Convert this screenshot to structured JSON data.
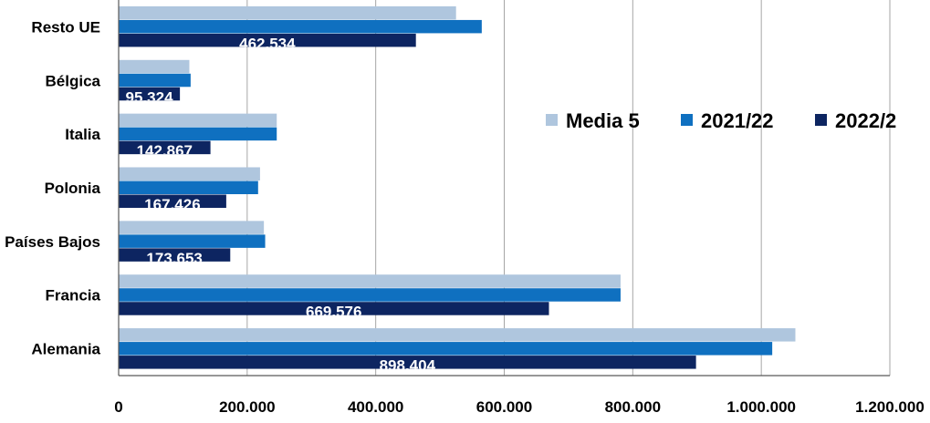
{
  "chart_data": {
    "type": "bar",
    "orientation": "horizontal",
    "categories": [
      "Alemania",
      "Francia",
      "Países Bajos",
      "Polonia",
      "Italia",
      "Bélgica",
      "Resto UE"
    ],
    "series": [
      {
        "name": "Media 5",
        "color": "#AFC6DE",
        "values": [
          1053000,
          781000,
          226000,
          220000,
          246000,
          110000,
          525000
        ]
      },
      {
        "name": "2021/22",
        "color": "#0F70C0",
        "values": [
          1017000,
          781000,
          228000,
          217000,
          246000,
          112000,
          565000
        ]
      },
      {
        "name": "2022/2",
        "color": "#0D2561",
        "values": [
          898404,
          669576,
          173653,
          167426,
          142867,
          95324,
          462534
        ]
      }
    ],
    "data_labels": [
      "898.404",
      "669.576",
      "173.653",
      "167.426",
      "142.867",
      "95.324",
      "462.534"
    ],
    "x_ticks": [
      "0",
      "200.000",
      "400.000",
      "600.000",
      "800.000",
      "1.000.000",
      "1.200.000"
    ],
    "xlim": [
      0,
      1200000
    ],
    "grid": "vertical",
    "legend_position": "right-center"
  }
}
